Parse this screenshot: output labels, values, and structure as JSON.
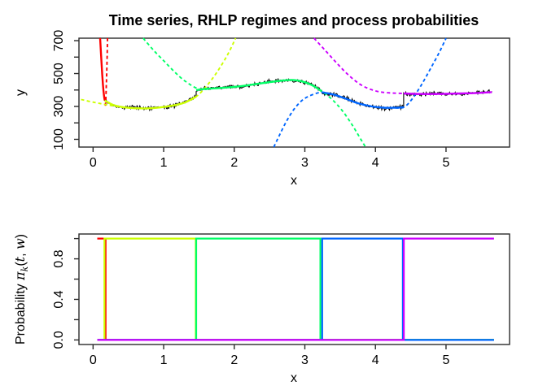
{
  "figure": {
    "background": "#FFFFFF",
    "frame_color": "#2b2b2b",
    "data_line_color": "#000000"
  },
  "chart_data": [
    {
      "id": "top-chart",
      "type": "line",
      "title": "Time series, RHLP regimes and process probabilities",
      "xlabel": "x",
      "ylabel": "y",
      "xlim": [
        -0.2,
        5.9
      ],
      "ylim": [
        53,
        715
      ],
      "grid": false,
      "xticks": [
        0,
        1,
        2,
        3,
        4,
        5
      ],
      "xtick_labels": [
        "0",
        "1",
        "2",
        "3",
        "4",
        "5"
      ],
      "yticks": [
        100,
        200,
        300,
        400,
        500,
        600,
        700
      ],
      "ytick_labels": [
        "100",
        "",
        "300",
        "",
        "500",
        "",
        "700"
      ],
      "noise_sd": 8,
      "description": "Noisy black time series with 5 RHLP regime mean curves (solid) and their polynomial extensions (dashed)",
      "regimes": [
        {
          "name": "regime-1-red",
          "color": "#FF0000",
          "solid": [
            [
              0.1,
              715
            ],
            [
              0.12,
              560
            ],
            [
              0.14,
              430
            ],
            [
              0.155,
              365
            ],
            [
              0.165,
              336
            ]
          ],
          "dashed": [
            [
              0.205,
              715
            ],
            [
              0.197,
              560
            ],
            [
              0.188,
              430
            ],
            [
              0.18,
              345
            ],
            [
              0.174,
              298
            ]
          ]
        },
        {
          "name": "regime-2-yellow",
          "color": "#CCFF00",
          "solid": [
            [
              0.165,
              336
            ],
            [
              0.3,
              307
            ],
            [
              0.5,
              292
            ],
            [
              0.75,
              288
            ],
            [
              0.95,
              294
            ],
            [
              1.15,
              307
            ],
            [
              1.3,
              324
            ],
            [
              1.46,
              360
            ]
          ],
          "dashed": [
            [
              -0.17,
              342
            ],
            [
              0.0,
              326
            ],
            [
              0.2,
              310
            ],
            [
              0.45,
              293
            ],
            [
              0.75,
              288
            ],
            [
              0.95,
              294
            ],
            [
              1.15,
              307
            ],
            [
              1.3,
              324
            ],
            [
              1.46,
              360
            ],
            [
              1.6,
              420
            ],
            [
              1.75,
              505
            ],
            [
              1.9,
              610
            ],
            [
              2.02,
              715
            ]
          ]
        },
        {
          "name": "regime-3-green",
          "color": "#00FF66",
          "solid": [
            [
              1.46,
              400
            ],
            [
              1.6,
              407
            ],
            [
              1.8,
              412
            ],
            [
              2.0,
              419
            ],
            [
              2.2,
              429
            ],
            [
              2.45,
              445
            ],
            [
              2.7,
              458
            ],
            [
              2.85,
              460
            ],
            [
              3.0,
              447
            ],
            [
              3.12,
              425
            ],
            [
              3.24,
              392
            ]
          ],
          "dashed": [
            [
              0.71,
              715
            ],
            [
              0.85,
              645
            ],
            [
              1.0,
              578
            ],
            [
              1.15,
              512
            ],
            [
              1.3,
              455
            ],
            [
              1.5,
              406
            ],
            [
              1.7,
              409
            ],
            [
              2.0,
              419
            ],
            [
              2.2,
              429
            ],
            [
              2.45,
              445
            ],
            [
              2.7,
              458
            ],
            [
              2.85,
              460
            ],
            [
              3.0,
              447
            ],
            [
              3.12,
              425
            ],
            [
              3.24,
              392
            ],
            [
              3.38,
              345
            ],
            [
              3.52,
              280
            ],
            [
              3.66,
              195
            ],
            [
              3.8,
              95
            ],
            [
              3.86,
              53
            ]
          ]
        },
        {
          "name": "regime-4-blue",
          "color": "#0066FF",
          "solid": [
            [
              3.24,
              386
            ],
            [
              3.4,
              373
            ],
            [
              3.55,
              352
            ],
            [
              3.75,
              320
            ],
            [
              3.95,
              300
            ],
            [
              4.1,
              293
            ],
            [
              4.25,
              292
            ],
            [
              4.4,
              295
            ]
          ],
          "dashed": [
            [
              2.56,
              53
            ],
            [
              2.64,
              125
            ],
            [
              2.74,
              210
            ],
            [
              2.85,
              285
            ],
            [
              2.97,
              340
            ],
            [
              3.1,
              370
            ],
            [
              3.24,
              386
            ],
            [
              3.4,
              373
            ],
            [
              3.55,
              352
            ],
            [
              3.75,
              320
            ],
            [
              3.95,
              300
            ],
            [
              4.1,
              293
            ],
            [
              4.25,
              292
            ],
            [
              4.4,
              295
            ],
            [
              4.52,
              345
            ],
            [
              4.65,
              430
            ],
            [
              4.78,
              530
            ],
            [
              4.9,
              625
            ],
            [
              5.0,
              715
            ]
          ]
        },
        {
          "name": "regime-5-magenta",
          "color": "#CC00FF",
          "solid": [
            [
              4.4,
              379
            ],
            [
              4.6,
              376
            ],
            [
              4.9,
              376
            ],
            [
              5.2,
              379
            ],
            [
              5.45,
              382
            ],
            [
              5.65,
              387
            ]
          ],
          "dashed": [
            [
              3.13,
              715
            ],
            [
              3.28,
              645
            ],
            [
              3.45,
              565
            ],
            [
              3.62,
              490
            ],
            [
              3.8,
              430
            ],
            [
              3.98,
              397
            ],
            [
              4.15,
              384
            ],
            [
              4.4,
              379
            ],
            [
              4.6,
              375
            ],
            [
              4.9,
              374
            ],
            [
              5.2,
              378
            ],
            [
              5.45,
              382
            ],
            [
              5.65,
              387
            ]
          ]
        }
      ]
    },
    {
      "id": "bottom-chart",
      "type": "step",
      "title": "",
      "xlabel": "x",
      "ylabel": "Probability  πk(t, w)",
      "ylabel_parts": [
        {
          "text": "Probability  ",
          "math": false,
          "sub": false
        },
        {
          "text": "π",
          "math": true,
          "sub": false
        },
        {
          "text": "k",
          "math": true,
          "sub": true
        },
        {
          "text": "(",
          "math": false,
          "sub": false
        },
        {
          "text": "t",
          "math": true,
          "sub": false
        },
        {
          "text": ", ",
          "math": false,
          "sub": false
        },
        {
          "text": "w",
          "math": true,
          "sub": false
        },
        {
          "text": ")",
          "math": false,
          "sub": false
        }
      ],
      "xlim": [
        -0.2,
        5.9
      ],
      "ylim": [
        -0.045,
        1.045
      ],
      "grid": false,
      "xticks": [
        0,
        1,
        2,
        3,
        4,
        5
      ],
      "xtick_labels": [
        "0",
        "1",
        "2",
        "3",
        "4",
        "5"
      ],
      "yticks": [
        0,
        0.2,
        0.4,
        0.6,
        0.8,
        1.0
      ],
      "ytick_labels": [
        "0.0",
        "",
        "0.4",
        "",
        "0.8",
        ""
      ],
      "domain": [
        0.06,
        5.68
      ],
      "description": "Logistic process probabilities: each regime probability is ~1 inside its segment and ~0 outside, with sharp transitions",
      "series": [
        {
          "name": "pi-1-red",
          "color": "#FF0000",
          "high": [
            0.06,
            0.165
          ],
          "rise_offset": 0,
          "fall_offset": 0.012
        },
        {
          "name": "pi-2-yellow",
          "color": "#CCFF00",
          "high": [
            0.165,
            1.46
          ],
          "rise_offset": -0.004,
          "fall_offset": -0.005
        },
        {
          "name": "pi-3-green",
          "color": "#00FF66",
          "high": [
            1.46,
            3.24
          ],
          "rise_offset": 0,
          "fall_offset": -0.02
        },
        {
          "name": "pi-4-blue",
          "color": "#0066FF",
          "high": [
            3.24,
            4.4
          ],
          "rise_offset": 0.005,
          "fall_offset": -0.012
        },
        {
          "name": "pi-5-magenta",
          "color": "#CC00FF",
          "high": [
            4.4,
            5.68
          ],
          "rise_offset": 0.002,
          "fall_offset": 0
        }
      ]
    }
  ]
}
